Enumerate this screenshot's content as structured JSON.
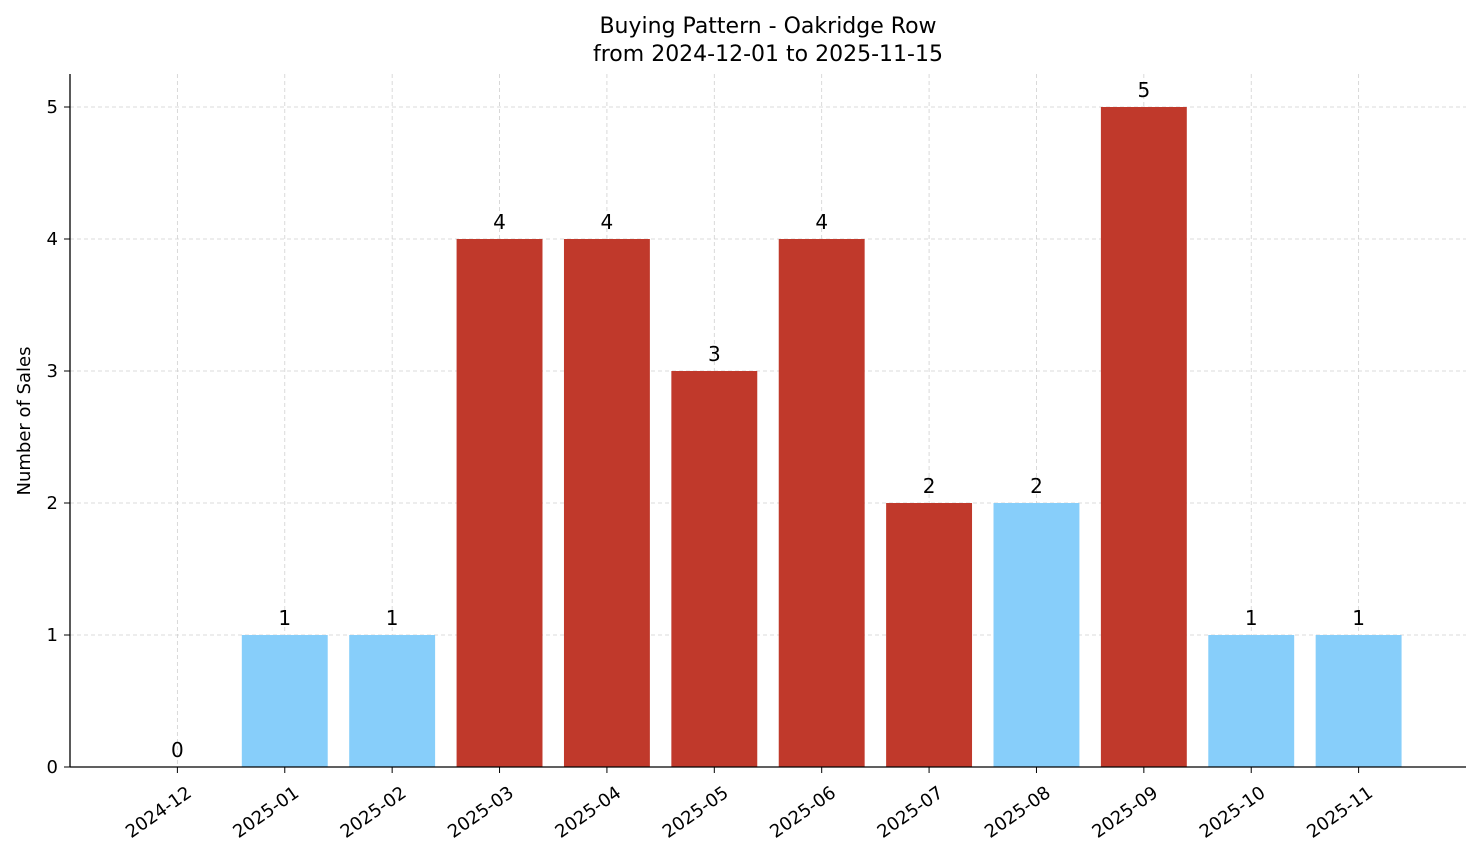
{
  "chart_data": {
    "type": "bar",
    "title": "Buying Pattern - Oakridge Row",
    "subtitle": "from 2024-12-01 to 2025-11-15",
    "xlabel": "",
    "ylabel": "Number of Sales",
    "categories": [
      "2024-12",
      "2025-01",
      "2025-02",
      "2025-03",
      "2025-04",
      "2025-05",
      "2025-06",
      "2025-07",
      "2025-08",
      "2025-09",
      "2025-10",
      "2025-11"
    ],
    "values": [
      0,
      1,
      1,
      4,
      4,
      3,
      4,
      2,
      2,
      5,
      1,
      1
    ],
    "bar_colors": [
      "#87cefa",
      "#87cefa",
      "#87cefa",
      "#c0392b",
      "#c0392b",
      "#c0392b",
      "#c0392b",
      "#c0392b",
      "#87cefa",
      "#c0392b",
      "#87cefa",
      "#87cefa"
    ],
    "yticks": [
      0,
      1,
      2,
      3,
      4,
      5
    ],
    "ylim": [
      0,
      5.25
    ],
    "grid": true,
    "data_labels": true
  }
}
